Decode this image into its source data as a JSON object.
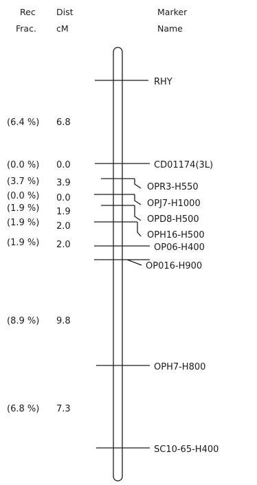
{
  "headers": {
    "rec_line1": "Rec",
    "rec_line2": "Frac.",
    "dist_line1": "Dist",
    "dist_line2": "cM",
    "marker_line1": "Marker",
    "marker_line2": "Name"
  },
  "markers": [
    "RHY",
    "CD01174(3L)",
    "OPR3-H550",
    "OPJ7-H1000",
    "OPD8-H500",
    "OPH16-H500",
    "OP06-H400",
    "OP016-H900",
    "OPH7-H800",
    "SC10-65-H400"
  ],
  "intervals": [
    {
      "rec": "(6.4 %)",
      "dist": "6.8"
    },
    {
      "rec": "(0.0 %)",
      "dist": "0.0"
    },
    {
      "rec": "(3.7 %)",
      "dist": "3.9"
    },
    {
      "rec": "(0.0 %)",
      "dist": "0.0"
    },
    {
      "rec": "(1.9 %)",
      "dist": "1.9"
    },
    {
      "rec": "(1.9 %)",
      "dist": "2.0"
    },
    {
      "rec": "(1.9 %)",
      "dist": "2.0"
    },
    {
      "rec": "(8.9 %)",
      "dist": "9.8"
    },
    {
      "rec": "(6.8 %)",
      "dist": "7.3"
    }
  ]
}
